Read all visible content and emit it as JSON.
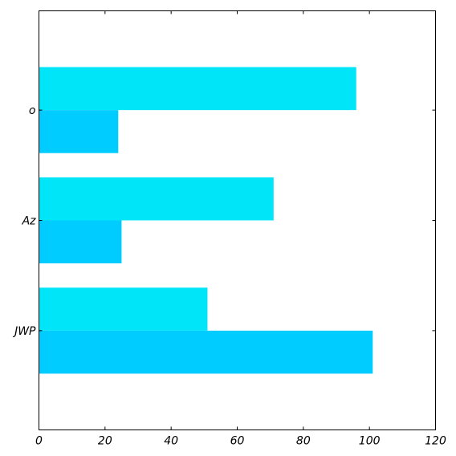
{
  "chart_data": {
    "type": "bar",
    "orientation": "horizontal",
    "title": "",
    "xlabel": "",
    "ylabel": "",
    "categories": [
      "JWP",
      "Az",
      "o"
    ],
    "series": [
      {
        "name": "series-1",
        "color": "#00e5f8",
        "values": [
          51,
          71,
          96
        ]
      },
      {
        "name": "series-2",
        "color": "#00ccff",
        "values": [
          101,
          25,
          24
        ]
      }
    ],
    "xlim": [
      0,
      120
    ],
    "xticks": [
      0,
      20,
      40,
      60,
      80,
      100,
      120
    ],
    "xtick_labels": [
      "0",
      "20",
      "40",
      "60",
      "80",
      "100",
      "120"
    ],
    "grid": false,
    "legend": "none"
  }
}
